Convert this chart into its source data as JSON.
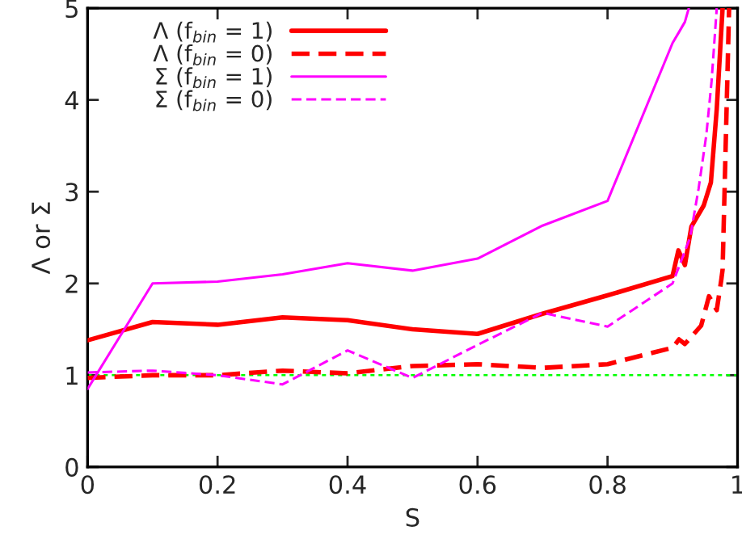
{
  "chart_data": {
    "type": "line",
    "xlabel": "S",
    "ylabel": "Λ or Σ",
    "xlim": [
      0,
      1
    ],
    "ylim": [
      0,
      5
    ],
    "xticks": [
      0,
      0.2,
      0.4,
      0.6,
      0.8,
      1
    ],
    "yticks": [
      0,
      1,
      2,
      3,
      4,
      5
    ],
    "grid": false,
    "legend": "top left",
    "marker": "none",
    "series": [
      {
        "name": "Λ (f$_{bin}$ = 1)",
        "color": "#ff0000",
        "line_style": "solid",
        "x": [
          0,
          0.1,
          0.2,
          0.3,
          0.4,
          0.5,
          0.6,
          0.7,
          0.8,
          0.9,
          0.909,
          0.919,
          0.929,
          0.948,
          0.959,
          0.968,
          0.977
        ],
        "values": [
          1.38,
          1.58,
          1.55,
          1.63,
          1.6,
          1.5,
          1.45,
          1.67,
          1.87,
          2.08,
          2.36,
          2.2,
          2.62,
          2.85,
          3.1,
          3.9,
          5
        ]
      },
      {
        "name": "Λ (f$_{bin}$ = 0)",
        "color": "#ff0000",
        "line_style": "dashed",
        "x": [
          0,
          0.1,
          0.2,
          0.3,
          0.4,
          0.5,
          0.6,
          0.7,
          0.8,
          0.9,
          0.91,
          0.919,
          0.944,
          0.956,
          0.968,
          0.975,
          0.977,
          0.987
        ],
        "values": [
          0.97,
          1.0,
          1.0,
          1.05,
          1.02,
          1.1,
          1.12,
          1.08,
          1.12,
          1.3,
          1.39,
          1.34,
          1.54,
          1.86,
          1.71,
          2.04,
          2.15,
          5
        ]
      },
      {
        "name": "Σ (f$_{bin}$ = 1)",
        "color": "#ff00ff",
        "line_style": "solid",
        "x": [
          0,
          0.1,
          0.2,
          0.3,
          0.4,
          0.5,
          0.6,
          0.7,
          0.8,
          0.9,
          0.91,
          0.919,
          0.925
        ],
        "values": [
          0.85,
          2.0,
          2.02,
          2.1,
          2.22,
          2.14,
          2.27,
          2.63,
          2.9,
          4.62,
          4.74,
          4.85,
          5
        ]
      },
      {
        "name": "Σ (f$_{bin}$ = 0)",
        "color": "#ff00ff",
        "line_style": "dashed",
        "x": [
          0,
          0.1,
          0.2,
          0.3,
          0.4,
          0.5,
          0.6,
          0.7,
          0.8,
          0.9,
          0.927,
          0.94,
          0.952,
          0.96,
          0.968
        ],
        "values": [
          1.03,
          1.05,
          1.0,
          0.9,
          1.27,
          0.97,
          1.33,
          1.68,
          1.53,
          2.0,
          2.5,
          3.03,
          3.62,
          4.2,
          5
        ]
      }
    ],
    "ref_lines": [
      {
        "axis": "y",
        "value": 1,
        "label": null,
        "color": "#00ff00",
        "line_style": "dotted"
      }
    ]
  }
}
